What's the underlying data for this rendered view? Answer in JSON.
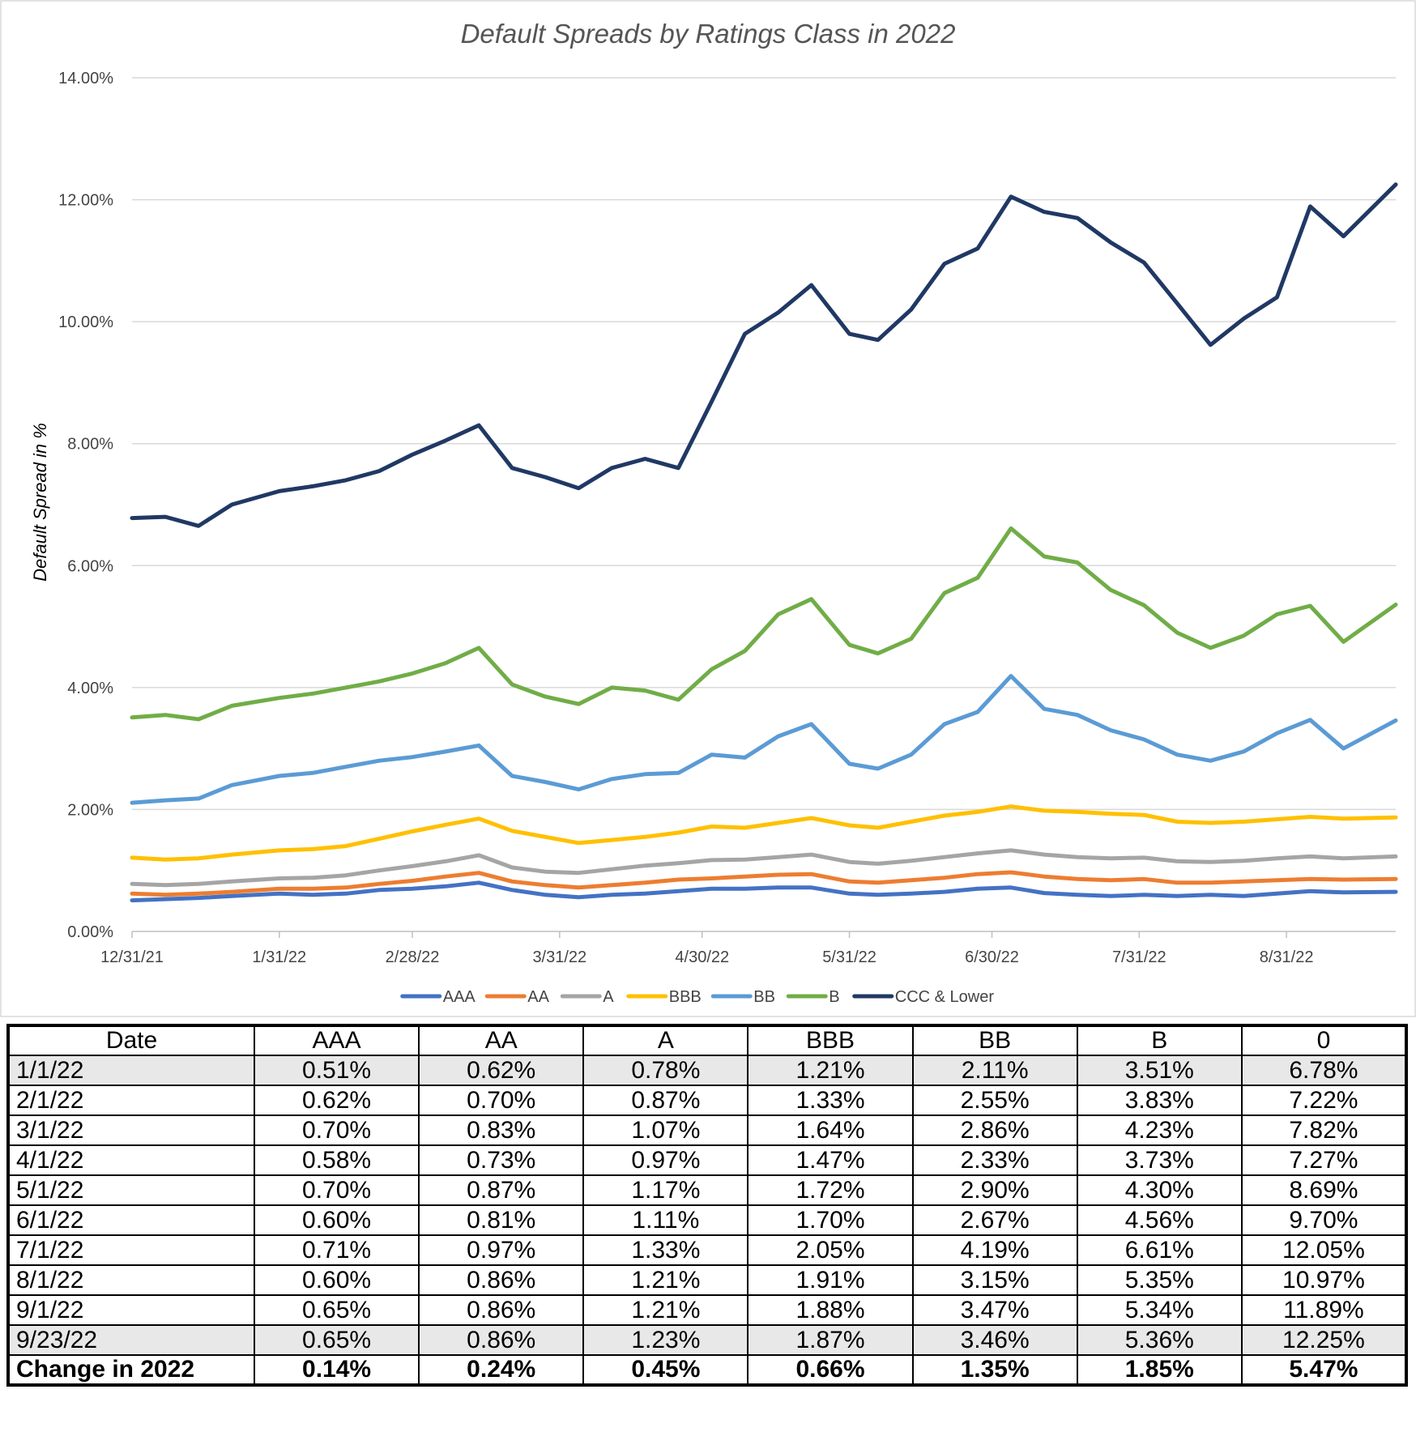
{
  "chart_data": {
    "type": "line",
    "title": "Default Spreads by Ratings Class in 2022",
    "xlabel": "",
    "ylabel": "Default Spread in %",
    "ylim": [
      0,
      14
    ],
    "yticks": [
      "0.00%",
      "2.00%",
      "4.00%",
      "6.00%",
      "8.00%",
      "10.00%",
      "12.00%",
      "14.00%"
    ],
    "xlim": [
      "2021-12-31",
      "2022-09-23"
    ],
    "xticks": [
      {
        "date": "2021-12-31",
        "label": "12/31/21"
      },
      {
        "date": "2022-01-31",
        "label": "1/31/22"
      },
      {
        "date": "2022-02-28",
        "label": "2/28/22"
      },
      {
        "date": "2022-03-31",
        "label": "3/31/22"
      },
      {
        "date": "2022-04-30",
        "label": "4/30/22"
      },
      {
        "date": "2022-05-31",
        "label": "5/31/22"
      },
      {
        "date": "2022-06-30",
        "label": "6/30/22"
      },
      {
        "date": "2022-07-31",
        "label": "7/31/22"
      },
      {
        "date": "2022-08-31",
        "label": "8/31/22"
      }
    ],
    "grid": true,
    "legend_position": "bottom",
    "x": [
      "2021-12-31",
      "2022-01-07",
      "2022-01-14",
      "2022-01-21",
      "2022-01-31",
      "2022-02-07",
      "2022-02-14",
      "2022-02-21",
      "2022-02-28",
      "2022-03-07",
      "2022-03-14",
      "2022-03-21",
      "2022-03-28",
      "2022-04-04",
      "2022-04-11",
      "2022-04-18",
      "2022-04-25",
      "2022-05-02",
      "2022-05-09",
      "2022-05-16",
      "2022-05-23",
      "2022-05-31",
      "2022-06-06",
      "2022-06-13",
      "2022-06-20",
      "2022-06-27",
      "2022-07-04",
      "2022-07-11",
      "2022-07-18",
      "2022-07-25",
      "2022-08-01",
      "2022-08-08",
      "2022-08-15",
      "2022-08-22",
      "2022-08-29",
      "2022-09-05",
      "2022-09-12",
      "2022-09-23"
    ],
    "series": [
      {
        "name": "AAA",
        "color": "#4472C4",
        "values": [
          0.51,
          0.53,
          0.55,
          0.58,
          0.62,
          0.6,
          0.62,
          0.68,
          0.7,
          0.74,
          0.8,
          0.68,
          0.6,
          0.56,
          0.6,
          0.62,
          0.66,
          0.7,
          0.7,
          0.72,
          0.72,
          0.62,
          0.6,
          0.62,
          0.65,
          0.7,
          0.72,
          0.63,
          0.6,
          0.58,
          0.6,
          0.58,
          0.6,
          0.58,
          0.62,
          0.66,
          0.64,
          0.65
        ]
      },
      {
        "name": "AA",
        "color": "#ED7D31",
        "values": [
          0.62,
          0.6,
          0.62,
          0.65,
          0.7,
          0.7,
          0.72,
          0.78,
          0.83,
          0.9,
          0.96,
          0.82,
          0.76,
          0.72,
          0.76,
          0.8,
          0.85,
          0.87,
          0.9,
          0.93,
          0.94,
          0.82,
          0.8,
          0.84,
          0.88,
          0.94,
          0.97,
          0.9,
          0.86,
          0.84,
          0.86,
          0.8,
          0.8,
          0.82,
          0.84,
          0.86,
          0.85,
          0.86
        ]
      },
      {
        "name": "A",
        "color": "#A5A5A5",
        "values": [
          0.78,
          0.76,
          0.78,
          0.82,
          0.87,
          0.88,
          0.92,
          1.0,
          1.07,
          1.15,
          1.25,
          1.05,
          0.98,
          0.96,
          1.02,
          1.08,
          1.12,
          1.17,
          1.18,
          1.22,
          1.26,
          1.14,
          1.11,
          1.16,
          1.22,
          1.28,
          1.33,
          1.26,
          1.22,
          1.2,
          1.21,
          1.15,
          1.14,
          1.16,
          1.2,
          1.23,
          1.2,
          1.23
        ]
      },
      {
        "name": "BBB",
        "color": "#FFC000",
        "values": [
          1.21,
          1.18,
          1.2,
          1.26,
          1.33,
          1.35,
          1.4,
          1.52,
          1.64,
          1.75,
          1.85,
          1.65,
          1.55,
          1.45,
          1.5,
          1.55,
          1.62,
          1.72,
          1.7,
          1.78,
          1.86,
          1.74,
          1.7,
          1.8,
          1.9,
          1.96,
          2.05,
          1.98,
          1.96,
          1.93,
          1.91,
          1.8,
          1.78,
          1.8,
          1.84,
          1.88,
          1.85,
          1.87
        ]
      },
      {
        "name": "BB",
        "color": "#5B9BD5",
        "values": [
          2.11,
          2.15,
          2.18,
          2.4,
          2.55,
          2.6,
          2.7,
          2.8,
          2.86,
          2.95,
          3.05,
          2.55,
          2.45,
          2.33,
          2.5,
          2.58,
          2.6,
          2.9,
          2.85,
          3.2,
          3.4,
          2.75,
          2.67,
          2.9,
          3.4,
          3.6,
          4.19,
          3.65,
          3.55,
          3.3,
          3.15,
          2.9,
          2.8,
          2.95,
          3.25,
          3.47,
          3.0,
          3.46
        ]
      },
      {
        "name": "B",
        "color": "#70AD47",
        "values": [
          3.51,
          3.55,
          3.48,
          3.7,
          3.83,
          3.9,
          4.0,
          4.1,
          4.23,
          4.4,
          4.65,
          4.05,
          3.85,
          3.73,
          4.0,
          3.95,
          3.8,
          4.3,
          4.6,
          5.2,
          5.45,
          4.7,
          4.56,
          4.8,
          5.55,
          5.8,
          6.61,
          6.15,
          6.05,
          5.6,
          5.35,
          4.9,
          4.65,
          4.85,
          5.2,
          5.34,
          4.75,
          5.36
        ]
      },
      {
        "name": "CCC & Lower",
        "color": "#203864",
        "values": [
          6.78,
          6.8,
          6.65,
          7.0,
          7.22,
          7.3,
          7.4,
          7.55,
          7.82,
          8.05,
          8.3,
          7.6,
          7.45,
          7.27,
          7.6,
          7.75,
          7.6,
          8.69,
          9.8,
          10.15,
          10.6,
          9.8,
          9.7,
          10.2,
          10.95,
          11.2,
          12.05,
          11.8,
          11.7,
          11.3,
          10.97,
          10.3,
          9.62,
          10.05,
          10.4,
          11.89,
          11.4,
          12.25
        ]
      }
    ]
  },
  "table": {
    "headers": [
      "Date",
      "AAA",
      "AA",
      "A",
      "BBB",
      "BB",
      "B",
      "0"
    ],
    "rows": [
      {
        "date": "1/1/22",
        "values": [
          "0.51%",
          "0.62%",
          "0.78%",
          "1.21%",
          "2.11%",
          "3.51%",
          "6.78%"
        ]
      },
      {
        "date": "2/1/22",
        "values": [
          "0.62%",
          "0.70%",
          "0.87%",
          "1.33%",
          "2.55%",
          "3.83%",
          "7.22%"
        ]
      },
      {
        "date": "3/1/22",
        "values": [
          "0.70%",
          "0.83%",
          "1.07%",
          "1.64%",
          "2.86%",
          "4.23%",
          "7.82%"
        ]
      },
      {
        "date": "4/1/22",
        "values": [
          "0.58%",
          "0.73%",
          "0.97%",
          "1.47%",
          "2.33%",
          "3.73%",
          "7.27%"
        ]
      },
      {
        "date": "5/1/22",
        "values": [
          "0.70%",
          "0.87%",
          "1.17%",
          "1.72%",
          "2.90%",
          "4.30%",
          "8.69%"
        ]
      },
      {
        "date": "6/1/22",
        "values": [
          "0.60%",
          "0.81%",
          "1.11%",
          "1.70%",
          "2.67%",
          "4.56%",
          "9.70%"
        ]
      },
      {
        "date": "7/1/22",
        "values": [
          "0.71%",
          "0.97%",
          "1.33%",
          "2.05%",
          "4.19%",
          "6.61%",
          "12.05%"
        ]
      },
      {
        "date": "8/1/22",
        "values": [
          "0.60%",
          "0.86%",
          "1.21%",
          "1.91%",
          "3.15%",
          "5.35%",
          "10.97%"
        ]
      },
      {
        "date": "9/1/22",
        "values": [
          "0.65%",
          "0.86%",
          "1.21%",
          "1.88%",
          "3.47%",
          "5.34%",
          "11.89%"
        ]
      },
      {
        "date": "9/23/22",
        "values": [
          "0.65%",
          "0.86%",
          "1.23%",
          "1.87%",
          "3.46%",
          "5.36%",
          "12.25%"
        ]
      },
      {
        "date": "Change in 2022",
        "values": [
          "0.14%",
          "0.24%",
          "0.45%",
          "0.66%",
          "1.35%",
          "1.85%",
          "5.47%"
        ]
      }
    ]
  }
}
